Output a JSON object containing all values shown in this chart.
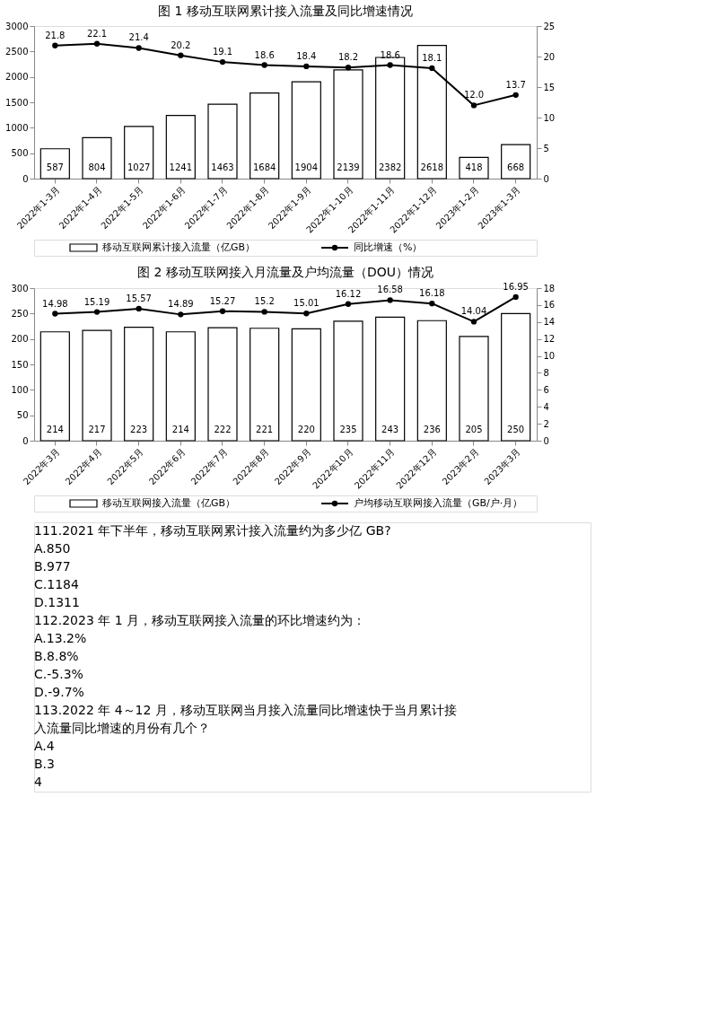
{
  "chart_data": [
    {
      "type": "bar",
      "title": "图 1   移动互联网累计接入流量及同比增速情况",
      "categories": [
        "2022年1-3月",
        "2022年1-4月",
        "2022年1-5月",
        "2022年1-6月",
        "2022年1-7月",
        "2022年1-8月",
        "2022年1-9月",
        "2022年1-10月",
        "2022年1-11月",
        "2022年1-12月",
        "2023年1-2月",
        "2023年1-3月"
      ],
      "series": [
        {
          "name": "移动互联网累计接入流量（亿GB）",
          "color": "#ffffff",
          "values": [
            587,
            804,
            1027,
            1241,
            1463,
            1684,
            1904,
            2139,
            2382,
            2618,
            418,
            668
          ]
        },
        {
          "name": "同比增速（%）",
          "type": "line",
          "axis": "y2",
          "color": "#000000",
          "values": [
            21.8,
            22.1,
            21.4,
            20.2,
            19.1,
            18.6,
            18.4,
            18.2,
            18.6,
            18.1,
            12.0,
            13.7
          ],
          "value_labels": [
            "21.8",
            "22.1",
            "21.4",
            "20.2",
            "19.1",
            "18.6",
            "18.4",
            "18.2",
            "18.6",
            "18.1",
            "12.0",
            "13.7"
          ]
        }
      ],
      "ylim": [
        0,
        3000
      ],
      "yticks": [
        0,
        500,
        1000,
        1500,
        2000,
        2500,
        3000
      ],
      "y2lim": [
        0,
        25
      ],
      "y2ticks": [
        0,
        5,
        10,
        15,
        20,
        25
      ],
      "data_labels": true,
      "legend": "bottom",
      "grid": false,
      "marker": "circle"
    },
    {
      "type": "bar",
      "title": "图 2   移动互联网接入月流量及户均流量（DOU）情况",
      "categories": [
        "2022年3月",
        "2022年4月",
        "2022年5月",
        "2022年6月",
        "2022年7月",
        "2022年8月",
        "2022年9月",
        "2022年10月",
        "2022年11月",
        "2022年12月",
        "2023年2月",
        "2023年3月"
      ],
      "series": [
        {
          "name": "移动互联网接入流量（亿GB）",
          "color": "#ffffff",
          "values": [
            214,
            217,
            223,
            214,
            222,
            221,
            220,
            235,
            243,
            236,
            205,
            250
          ]
        },
        {
          "name": "户均移动互联网接入流量（GB/户·月）",
          "type": "line",
          "axis": "y2",
          "color": "#000000",
          "values": [
            14.98,
            15.19,
            15.57,
            14.89,
            15.27,
            15.2,
            15.01,
            16.12,
            16.58,
            16.18,
            14.04,
            16.95
          ]
        }
      ],
      "ylim": [
        0,
        300
      ],
      "yticks": [
        0,
        50,
        100,
        150,
        200,
        250,
        300
      ],
      "y2lim": [
        0,
        18
      ],
      "y2ticks": [
        0,
        2,
        4,
        6,
        8,
        10,
        12,
        14,
        16,
        18
      ],
      "data_labels": true,
      "legend": "bottom",
      "grid": false,
      "marker": "circle",
      "annotations": [
        "111.2021 年下半年，移动互联网累计接入流量约为多少亿 GB?",
        "A.850",
        "B.977",
        "C.1184",
        "D.1311",
        "112.2023 年 1 月，移动互联网接入流量的环比增速约为：",
        "A.13.2%",
        "B.8.8%",
        "C.-5.3%",
        "D.-9.7%",
        "113.2022 年 4～12 月，移动互联网当月接入流量同比增速快于当月累计接",
        "入流量同比增速的月份有几个？",
        "A.4",
        "B.3",
        "4"
      ]
    }
  ]
}
